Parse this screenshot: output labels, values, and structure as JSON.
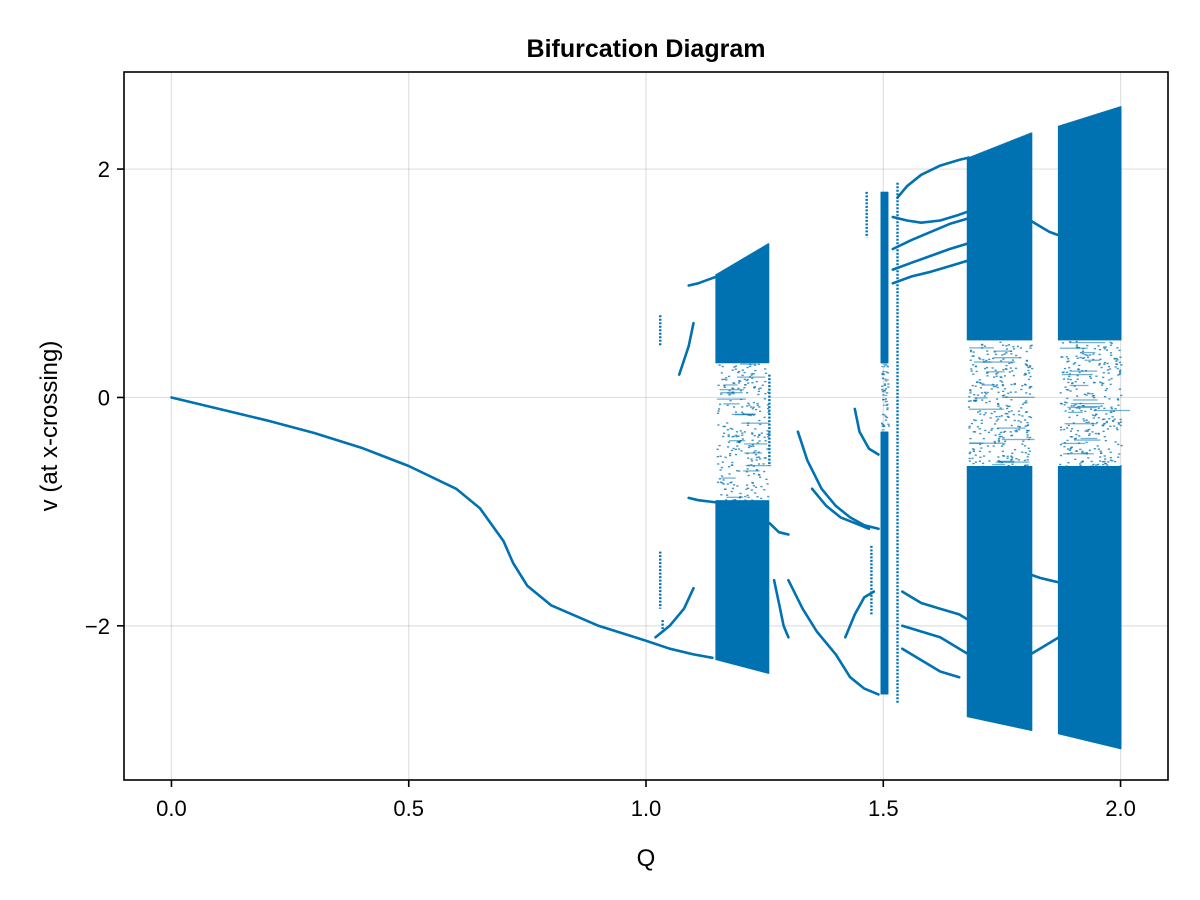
{
  "chart_data": {
    "type": "scatter",
    "title": "Bifurcation Diagram",
    "xlabel": "Q",
    "ylabel": "v (at x-crossing)",
    "xlim": [
      -0.1,
      2.1
    ],
    "ylim": [
      -3.35,
      2.85
    ],
    "x_ticks": [
      0.0,
      0.5,
      1.0,
      1.5,
      2.0
    ],
    "x_tick_labels": [
      "0.0",
      "0.5",
      "1.0",
      "1.5",
      "2.0"
    ],
    "y_ticks": [
      -2,
      0,
      2
    ],
    "y_tick_labels": [
      "−2",
      "0",
      "2"
    ],
    "grid": true,
    "legend": "none",
    "series_color": "#0072B2",
    "branches": [
      {
        "x": [
          0.0,
          0.1,
          0.2,
          0.3,
          0.4,
          0.5,
          0.6,
          0.65,
          0.7,
          0.72,
          0.75,
          0.8,
          0.9,
          1.0,
          1.05,
          1.1,
          1.14
        ],
        "y": [
          0.0,
          -0.1,
          -0.2,
          -0.31,
          -0.44,
          -0.6,
          -0.8,
          -0.97,
          -1.26,
          -1.45,
          -1.65,
          -1.82,
          -2.0,
          -2.13,
          -2.2,
          -2.25,
          -2.28
        ]
      },
      {
        "x": [
          1.02,
          1.05,
          1.08,
          1.1
        ],
        "y": [
          -2.1,
          -2.0,
          -1.85,
          -1.67
        ]
      },
      {
        "x": [
          1.07,
          1.09,
          1.1
        ],
        "y": [
          0.2,
          0.45,
          0.65
        ]
      },
      {
        "x": [
          1.09,
          1.11,
          1.13,
          1.15
        ],
        "y": [
          0.98,
          1.0,
          1.03,
          1.06
        ]
      },
      {
        "x": [
          1.09,
          1.11,
          1.15
        ],
        "y": [
          -0.88,
          -0.9,
          -0.92
        ]
      },
      {
        "x": [
          1.26,
          1.28,
          1.3
        ],
        "y": [
          -1.1,
          -1.18,
          -1.2
        ]
      },
      {
        "x": [
          1.27,
          1.28,
          1.29,
          1.3
        ],
        "y": [
          -1.6,
          -1.8,
          -2.0,
          -2.1
        ]
      },
      {
        "x": [
          1.32,
          1.34,
          1.37,
          1.4,
          1.43,
          1.46,
          1.49
        ],
        "y": [
          -0.3,
          -0.55,
          -0.8,
          -0.95,
          -1.05,
          -1.12,
          -1.15
        ]
      },
      {
        "x": [
          1.35,
          1.38,
          1.41,
          1.44,
          1.47
        ],
        "y": [
          -0.8,
          -0.95,
          -1.05,
          -1.1,
          -1.15
        ]
      },
      {
        "x": [
          1.44,
          1.45,
          1.47,
          1.49
        ],
        "y": [
          -0.1,
          -0.3,
          -0.45,
          -0.5
        ]
      },
      {
        "x": [
          1.3,
          1.33,
          1.36,
          1.4,
          1.43,
          1.46,
          1.49
        ],
        "y": [
          -1.6,
          -1.85,
          -2.05,
          -2.25,
          -2.45,
          -2.55,
          -2.6
        ]
      },
      {
        "x": [
          1.42,
          1.44,
          1.46,
          1.48
        ],
        "y": [
          -2.1,
          -1.9,
          -1.75,
          -1.7
        ]
      },
      {
        "x": [
          1.53,
          1.55,
          1.58,
          1.62,
          1.66,
          1.68
        ],
        "y": [
          1.75,
          1.85,
          1.95,
          2.03,
          2.08,
          2.1
        ]
      },
      {
        "x": [
          1.52,
          1.55,
          1.58,
          1.62,
          1.66,
          1.68
        ],
        "y": [
          1.58,
          1.55,
          1.53,
          1.55,
          1.6,
          1.63
        ]
      },
      {
        "x": [
          1.52,
          1.56,
          1.6,
          1.64,
          1.68
        ],
        "y": [
          1.3,
          1.38,
          1.45,
          1.52,
          1.57
        ]
      },
      {
        "x": [
          1.52,
          1.56,
          1.6,
          1.64,
          1.68
        ],
        "y": [
          1.12,
          1.18,
          1.24,
          1.3,
          1.35
        ]
      },
      {
        "x": [
          1.52,
          1.56,
          1.6,
          1.64,
          1.68
        ],
        "y": [
          1.0,
          1.06,
          1.1,
          1.15,
          1.2
        ]
      },
      {
        "x": [
          1.54,
          1.58,
          1.62,
          1.66,
          1.68
        ],
        "y": [
          -1.7,
          -1.8,
          -1.85,
          -1.9,
          -1.95
        ]
      },
      {
        "x": [
          1.54,
          1.58,
          1.62,
          1.66,
          1.68
        ],
        "y": [
          -2.0,
          -2.05,
          -2.1,
          -2.2,
          -2.25
        ]
      },
      {
        "x": [
          1.54,
          1.58,
          1.62,
          1.66
        ],
        "y": [
          -2.2,
          -2.3,
          -2.4,
          -2.45
        ]
      },
      {
        "x": [
          1.81,
          1.83,
          1.85,
          1.87
        ],
        "y": [
          1.55,
          1.5,
          1.45,
          1.42
        ]
      },
      {
        "x": [
          1.81,
          1.83,
          1.85,
          1.87
        ],
        "y": [
          -2.25,
          -2.2,
          -2.15,
          -2.1
        ]
      },
      {
        "x": [
          1.81,
          1.83,
          1.85,
          1.87
        ],
        "y": [
          -1.55,
          -1.58,
          -1.6,
          -1.62
        ]
      }
    ],
    "bands": [
      {
        "x_start": 1.148,
        "x_end": 1.258,
        "y_top_start": 1.08,
        "y_top_end": 1.35,
        "y_bottom_start": -2.3,
        "y_bottom_end": -2.42,
        "sparse_gap": [
          -0.9,
          0.3
        ]
      },
      {
        "x_start": 1.678,
        "x_end": 1.812,
        "y_top_start": 2.1,
        "y_top_end": 2.32,
        "y_bottom_start": -2.8,
        "y_bottom_end": -2.92,
        "sparse_gap": [
          -0.6,
          0.5
        ]
      },
      {
        "x_start": 1.87,
        "x_end": 2.0,
        "y_top_start": 2.38,
        "y_top_end": 2.55,
        "y_bottom_start": -2.95,
        "y_bottom_end": -3.08,
        "sparse_gap": [
          -0.6,
          0.5
        ]
      },
      {
        "x_start": 1.495,
        "x_end": 1.51,
        "y_top_start": 1.8,
        "y_top_end": 1.8,
        "y_bottom_start": -2.6,
        "y_bottom_end": -2.6,
        "sparse_gap": [
          -0.3,
          0.3
        ]
      }
    ],
    "vertical_streaks": [
      {
        "x": 1.03,
        "y_min": 0.45,
        "y_max": 0.72
      },
      {
        "x": 1.03,
        "y_min": -1.85,
        "y_max": -1.35
      },
      {
        "x": 1.035,
        "y_min": -2.05,
        "y_max": -1.95
      },
      {
        "x": 1.465,
        "y_min": 1.4,
        "y_max": 1.8
      },
      {
        "x": 1.475,
        "y_min": -1.9,
        "y_max": -1.3
      },
      {
        "x": 1.53,
        "y_min": -2.68,
        "y_max": 1.88
      },
      {
        "x": 1.26,
        "y_min": -0.6,
        "y_max": 0.2
      }
    ]
  }
}
